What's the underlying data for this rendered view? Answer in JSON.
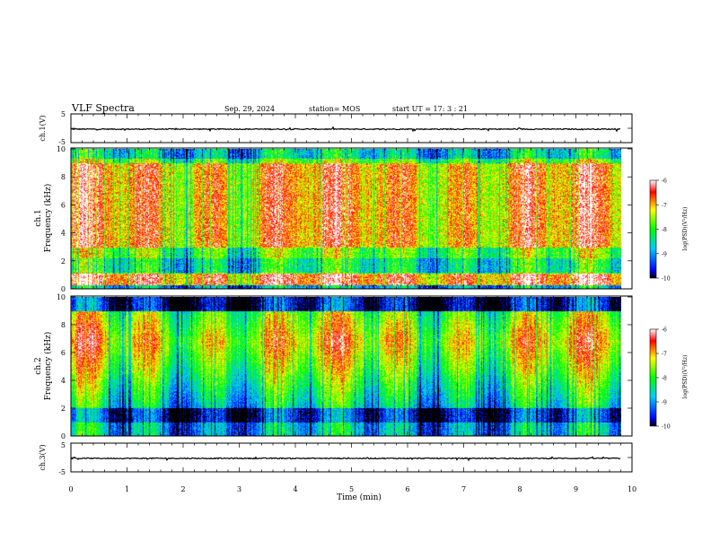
{
  "header": {
    "title": "VLF Spectra",
    "date": "Sep. 29, 2024",
    "station": "station= MOS",
    "start": "start  UT =   17: 3  : 21"
  },
  "chart_data": [
    {
      "type": "line",
      "name": "ch1-waveform",
      "ylabel": "ch.1(V)",
      "ylim": [
        -5,
        5
      ],
      "yticks": [
        "5",
        "-5"
      ],
      "xlim": [
        0,
        10
      ],
      "baseline": -0.3
    },
    {
      "type": "heatmap",
      "name": "ch1-spectrogram",
      "ylabel": [
        "ch.1",
        "Frequency  (kHz)"
      ],
      "ylim": [
        0,
        10
      ],
      "yticks": [
        "0",
        "2",
        "4",
        "6",
        "8",
        "10"
      ],
      "xlim": [
        0,
        10
      ],
      "xmax_data": 9.8,
      "colorbar": {
        "label": "log(PSD)(V²/Hz)",
        "range": [
          -10,
          -6
        ],
        "ticks": [
          "-6",
          "-7",
          "-8",
          "-9",
          "-10"
        ]
      }
    },
    {
      "type": "heatmap",
      "name": "ch2-spectrogram",
      "ylabel": [
        "ch.2",
        "Frequency  (kHz)"
      ],
      "ylim": [
        0,
        10
      ],
      "yticks": [
        "0",
        "2",
        "4",
        "6",
        "8",
        "10"
      ],
      "xlim": [
        0,
        10
      ],
      "xmax_data": 9.8,
      "colorbar": {
        "label": "log(PSD)(V²/Hz)",
        "range": [
          -10,
          -6
        ],
        "ticks": [
          "-6",
          "-7",
          "-8",
          "-9",
          "-10"
        ]
      }
    },
    {
      "type": "line",
      "name": "ch3-waveform",
      "ylabel": "ch.3(V)",
      "ylim": [
        -5,
        5
      ],
      "yticks": [
        "5",
        "-5"
      ],
      "xlim": [
        0,
        10
      ],
      "baseline": -0.3
    }
  ],
  "xaxis": {
    "label": "Time  (min)",
    "ticks": [
      "0",
      "1",
      "2",
      "3",
      "4",
      "5",
      "6",
      "7",
      "8",
      "9",
      "10"
    ]
  }
}
